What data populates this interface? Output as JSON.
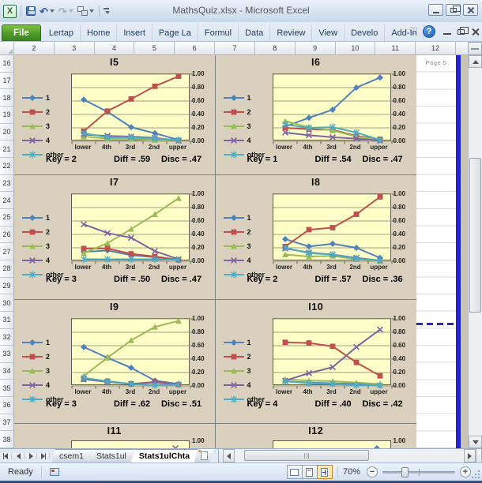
{
  "window": {
    "title": "MathsQuiz.xlsx  -  Microsoft Excel"
  },
  "ribbon": {
    "file_tab": "File",
    "tabs": [
      "Lertap",
      "Home",
      "Insert",
      "Page La",
      "Formul",
      "Data",
      "Review",
      "View",
      "Develo",
      "Add-In"
    ]
  },
  "icons": {
    "heart": "♡",
    "help": "?",
    "undo": "↶",
    "redo": "↷"
  },
  "sheet": {
    "column_headers": [
      "2",
      "3",
      "4",
      "5",
      "6",
      "7",
      "8",
      "9",
      "10",
      "11",
      "12"
    ],
    "row_headers": [
      "16",
      "17",
      "18",
      "19",
      "20",
      "21",
      "22",
      "23",
      "24",
      "25",
      "26",
      "27",
      "28",
      "29",
      "30",
      "31",
      "32",
      "33",
      "34",
      "35",
      "36",
      "37",
      "38"
    ],
    "page_label": "Page 5"
  },
  "chart_data": {
    "type": "line",
    "categories": [
      "lower",
      "4th",
      "3rd",
      "2nd",
      "upper"
    ],
    "y_ticks": [
      "1.00",
      "0.80",
      "0.60",
      "0.40",
      "0.20",
      "0.00"
    ],
    "ylim": [
      0,
      1
    ],
    "legend_position": "left",
    "legend": [
      "1",
      "2",
      "3",
      "4",
      "other"
    ],
    "series_colors": [
      "#4F81BD",
      "#C0504D",
      "#9BBB59",
      "#8064A2",
      "#4BACC6"
    ],
    "series_markers": [
      "diamond",
      "square",
      "triangle",
      "x",
      "asterisk"
    ],
    "stat_labels": {
      "key": "Key",
      "diff": "Diff",
      "disc": "Disc"
    },
    "charts": [
      {
        "id": "I5",
        "key": "2",
        "diff": ".59",
        "disc": ".47",
        "series": [
          [
            0.62,
            0.44,
            0.21,
            0.12,
            0.02
          ],
          [
            0.15,
            0.45,
            0.63,
            0.82,
            0.97
          ],
          [
            0.07,
            0.04,
            0.04,
            0.02,
            0.01
          ],
          [
            0.1,
            0.08,
            0.07,
            0.05,
            0.01
          ],
          [
            0.12,
            0.06,
            0.06,
            0.04,
            0.02
          ]
        ]
      },
      {
        "id": "I6",
        "key": "1",
        "diff": ".54",
        "disc": ".47",
        "series": [
          [
            0.22,
            0.35,
            0.47,
            0.8,
            0.95
          ],
          [
            0.2,
            0.18,
            0.17,
            0.08,
            0.03
          ],
          [
            0.3,
            0.21,
            0.16,
            0.07,
            0.02
          ],
          [
            0.13,
            0.09,
            0.06,
            0.04,
            0.01
          ],
          [
            0.25,
            0.2,
            0.21,
            0.13,
            0.02
          ]
        ]
      },
      {
        "id": "I7",
        "key": "3",
        "diff": ".50",
        "disc": ".47",
        "series": [
          [
            0.14,
            0.16,
            0.09,
            0.06,
            0.02
          ],
          [
            0.19,
            0.19,
            0.11,
            0.07,
            0.02
          ],
          [
            0.12,
            0.27,
            0.48,
            0.7,
            0.94
          ],
          [
            0.55,
            0.42,
            0.35,
            0.15,
            0.03
          ],
          [
            0.03,
            0.03,
            0.03,
            0.03,
            0.02
          ]
        ]
      },
      {
        "id": "I8",
        "key": "2",
        "diff": ".57",
        "disc": ".36",
        "series": [
          [
            0.33,
            0.22,
            0.26,
            0.2,
            0.05
          ],
          [
            0.22,
            0.47,
            0.5,
            0.7,
            0.96
          ],
          [
            0.1,
            0.07,
            0.08,
            0.03,
            0.0
          ],
          [
            0.19,
            0.13,
            0.1,
            0.05,
            0.01
          ],
          [
            0.2,
            0.12,
            0.1,
            0.04,
            0.01
          ]
        ]
      },
      {
        "id": "I9",
        "key": "3",
        "diff": ".62",
        "disc": ".51",
        "series": [
          [
            0.58,
            0.42,
            0.27,
            0.08,
            0.03
          ],
          [
            0.1,
            0.07,
            0.03,
            0.06,
            0.02
          ],
          [
            0.15,
            0.42,
            0.68,
            0.88,
            0.97
          ],
          [
            0.1,
            0.06,
            0.03,
            0.05,
            0.02
          ],
          [
            0.12,
            0.07,
            0.03,
            0.01,
            0.02
          ]
        ]
      },
      {
        "id": "I10",
        "key": "4",
        "diff": ".40",
        "disc": ".42",
        "series": [
          [
            0.07,
            0.05,
            0.04,
            0.03,
            0.01
          ],
          [
            0.65,
            0.64,
            0.59,
            0.35,
            0.15
          ],
          [
            0.1,
            0.08,
            0.07,
            0.05,
            0.03
          ],
          [
            0.08,
            0.19,
            0.28,
            0.58,
            0.84
          ],
          [
            0.07,
            0.04,
            0.03,
            0.01,
            0.01
          ]
        ]
      },
      {
        "id": "I11",
        "partial": true,
        "peek_marker": {
          "series_index": 3,
          "x_frac": 0.88
        }
      },
      {
        "id": "I12",
        "partial": true,
        "peek_marker": {
          "series_index": 0,
          "x_frac": 0.88
        }
      }
    ]
  },
  "sheet_tabs": {
    "tabs": [
      "csem1",
      "Stats1ul",
      "Stats1ulChta"
    ],
    "active": "Stats1ulChta"
  },
  "status": {
    "ready": "Ready",
    "zoom": "70%"
  }
}
